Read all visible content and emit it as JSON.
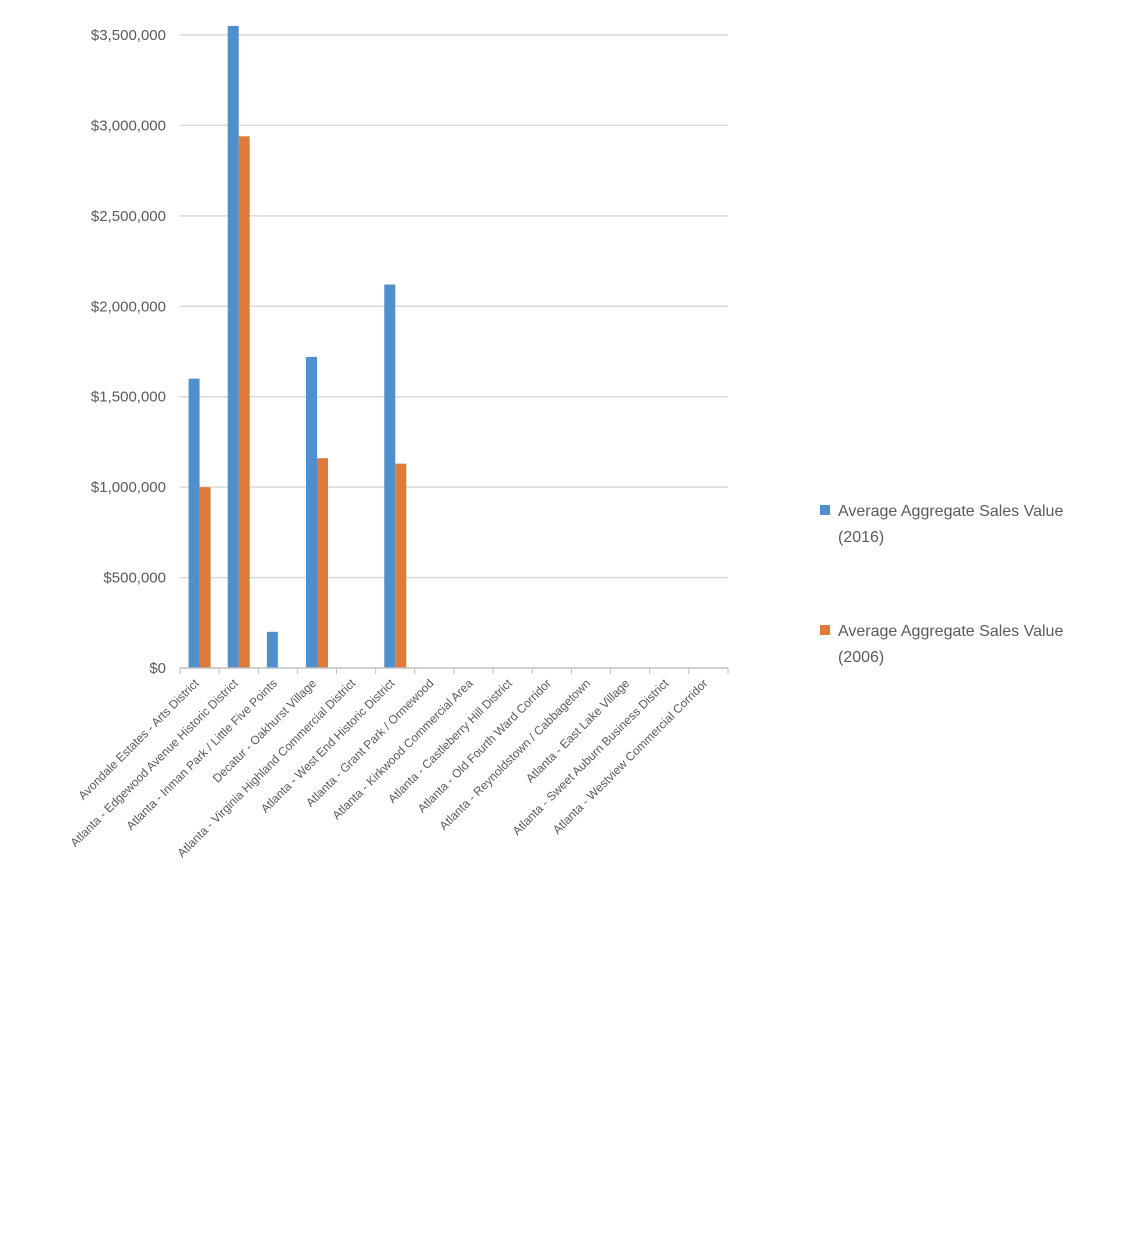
{
  "chart_data": {
    "type": "bar",
    "title": "",
    "xlabel": "",
    "ylabel": "",
    "ylim": [
      0,
      3500000
    ],
    "y_ticks": [
      0,
      500000,
      1000000,
      1500000,
      2000000,
      2500000,
      3000000,
      3500000
    ],
    "y_tick_labels": [
      "$0",
      "$500,000",
      "$1,000,000",
      "$1,500,000",
      "$2,000,000",
      "$2,500,000",
      "$3,000,000",
      "$3,500,000"
    ],
    "grid": true,
    "legend_position": "right",
    "categories": [
      "Avondale Estates - Arts District",
      "Atlanta - Edgewood Avenue Historic District",
      "Atlanta - Inman Park / Little Five Points",
      "Decatur - Oakhurst Village",
      "Atlanta - Virginia Highland Commercial District",
      "Atlanta - West End Historic District",
      "Atlanta - Grant Park / Ormewood",
      "Atlanta - Kirkwood Commercial Area",
      "Atlanta - Castleberry Hill District",
      "Atlanta - Old Fourth Ward Corridor",
      "Atlanta - Reynoldstown / Cabbagetown",
      "Atlanta - East Lake Village",
      "Atlanta - Sweet Auburn Business District",
      "Atlanta - Westview Commercial Corridor"
    ],
    "series": [
      {
        "name": "Average Aggregate Sales Value (2016)",
        "color": "#4e8fcc",
        "values": [
          1600000,
          3550000,
          200000,
          1720000,
          0,
          2120000,
          0,
          0,
          0,
          0,
          0,
          0,
          0,
          0
        ]
      },
      {
        "name": "Average Aggregate Sales Value (2006)",
        "color": "#e07a3a",
        "values": [
          1000000,
          2940000,
          0,
          1160000,
          0,
          1130000,
          0,
          0,
          0,
          0,
          0,
          0,
          0,
          0
        ]
      }
    ]
  }
}
